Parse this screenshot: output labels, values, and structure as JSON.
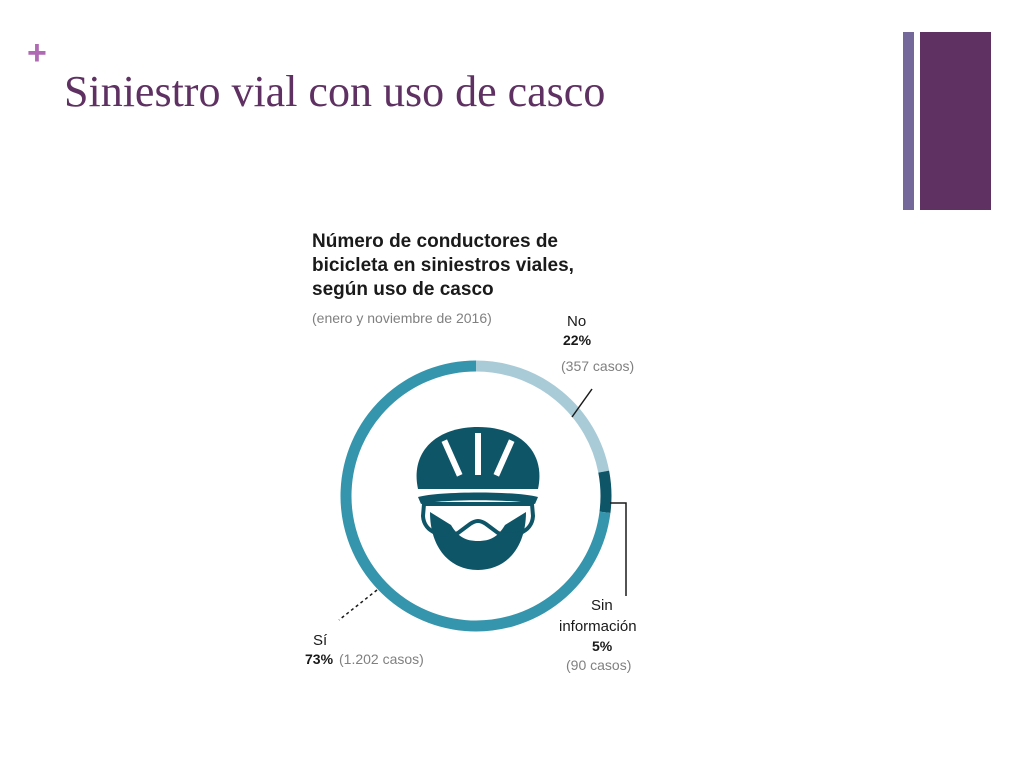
{
  "slide": {
    "bullet_glyph": "+",
    "title": "Siniestro vial con uso de casco"
  },
  "colors": {
    "accent_purple": "#5f3163",
    "accent_lavender": "#736899",
    "bullet_pink": "#b06ab3"
  },
  "icons": [
    "cyclist-helmet-icon"
  ],
  "chart_data": {
    "type": "pie",
    "donut": true,
    "title_lines": [
      "Número de conductores de",
      "bicicleta en siniestros viales,",
      "según uso de casco"
    ],
    "subtitle": "(enero y noviembre de 2016)",
    "slices": [
      {
        "key": "no",
        "category": "No",
        "percent": 22,
        "pct_label": "22%",
        "cases_label": "(357 casos)",
        "cases": 357,
        "color": "#a9cbd8"
      },
      {
        "key": "sin",
        "category_lines": [
          "Sin",
          "información"
        ],
        "percent": 5,
        "pct_label": "5%",
        "cases_label": "(90 casos)",
        "cases": 90,
        "color": "#0e5568"
      },
      {
        "key": "si",
        "category": "Sí",
        "percent": 73,
        "pct_label": "73%",
        "cases_label": "(1.202 casos)",
        "cases": 1202,
        "color": "#3595ac"
      }
    ]
  }
}
